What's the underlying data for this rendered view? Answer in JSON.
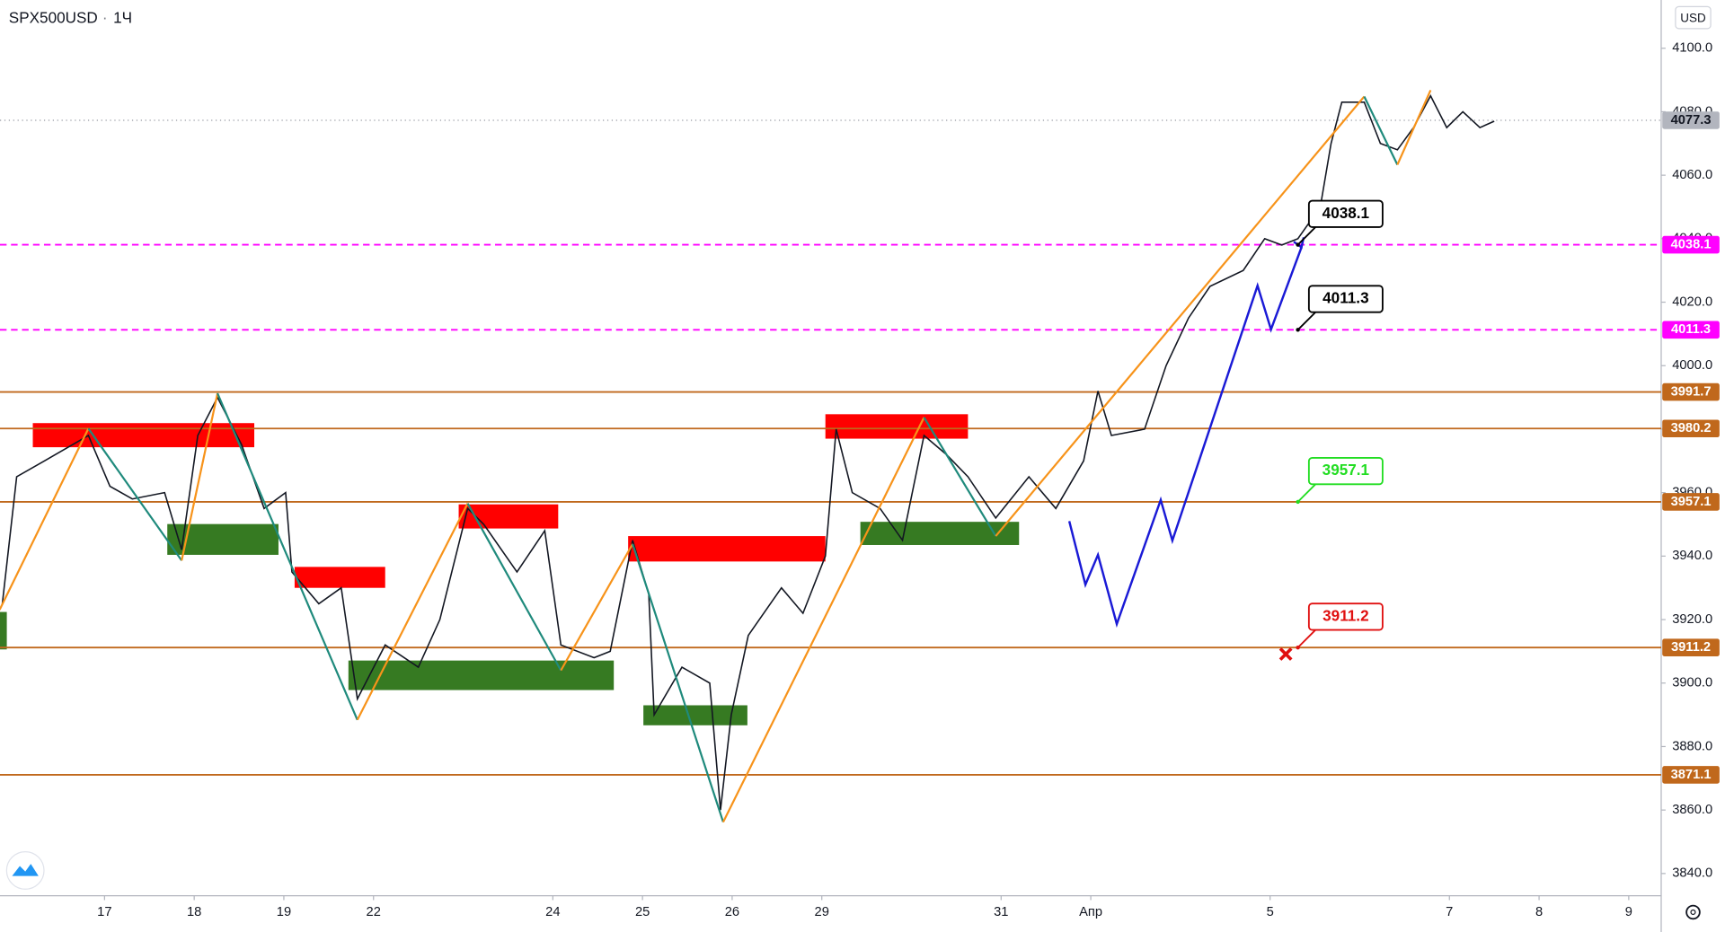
{
  "chart_data": {
    "type": "line",
    "title": "SPX500USD",
    "interval": "1Ч",
    "currency": "USD",
    "color": "#131722",
    "x": [
      -0.14,
      0.02,
      0.33,
      0.82,
      1.06,
      1.31,
      1.67,
      1.86,
      2.04,
      2.26,
      2.53,
      2.78,
      3.02,
      3.09,
      3.39,
      3.64,
      3.82,
      4.13,
      4.5,
      4.74,
      5.05,
      5.23,
      5.6,
      5.91,
      6.09,
      6.46,
      6.64,
      6.89,
      7.07,
      7.13,
      7.44,
      7.75,
      7.87,
      7.99,
      8.18,
      8.55,
      8.79,
      9.04,
      9.16,
      9.34,
      9.65,
      9.9,
      10.14,
      10.39,
      10.63,
      10.94,
      11.31,
      11.61,
      11.92,
      12.08,
      12.23,
      12.6,
      12.84,
      13.09,
      13.33,
      13.7,
      13.94,
      14.13,
      14.31,
      14.56,
      14.68,
      14.8,
      15.05,
      15.23,
      15.42,
      15.6,
      15.79,
      15.97,
      16.15,
      16.34,
      16.5
    ],
    "values": [
      3925,
      3965,
      3970,
      3978,
      3962,
      3958,
      3960,
      3942,
      3978,
      3990,
      3975,
      3955,
      3960,
      3935,
      3925,
      3930,
      3895,
      3912,
      3905,
      3920,
      3955,
      3950,
      3935,
      3948,
      3912,
      3908,
      3910,
      3945,
      3928,
      3890,
      3905,
      3900,
      3860,
      3890,
      3915,
      3930,
      3922,
      3940,
      3980,
      3960,
      3955,
      3945,
      3978,
      3972,
      3965,
      3952,
      3965,
      3955,
      3970,
      3992,
      3978,
      3980,
      4000,
      4015,
      4025,
      4030,
      4040,
      4038,
      4040,
      4050,
      4070,
      4083,
      4083,
      4070,
      4068,
      4075,
      4085,
      4075,
      4080,
      4075,
      4077
    ],
    "xlim": [
      -0.166,
      18.362
    ],
    "xticks": [
      {
        "value": 1,
        "label": "17"
      },
      {
        "value": 2,
        "label": "18"
      },
      {
        "value": 3,
        "label": "19"
      },
      {
        "value": 4,
        "label": "22"
      },
      {
        "value": 6,
        "label": "24"
      },
      {
        "value": 7,
        "label": "25"
      },
      {
        "value": 8,
        "label": "26"
      },
      {
        "value": 9,
        "label": "29"
      },
      {
        "value": 11,
        "label": "31"
      },
      {
        "value": 12,
        "label": "Апр"
      },
      {
        "value": 14,
        "label": "5"
      },
      {
        "value": 16,
        "label": "7"
      },
      {
        "value": 17,
        "label": "8"
      },
      {
        "value": 18,
        "label": "9"
      }
    ],
    "ylim": [
      3833,
      4115.2
    ],
    "yticks": [
      {
        "value": 3840,
        "label": "3840.0"
      },
      {
        "value": 3860,
        "label": "3860.0"
      },
      {
        "value": 3880,
        "label": "3880.0"
      },
      {
        "value": 3900,
        "label": "3900.0"
      },
      {
        "value": 3920,
        "label": "3920.0"
      },
      {
        "value": 3940,
        "label": "3940.0"
      },
      {
        "value": 3960,
        "label": "3960.0"
      },
      {
        "value": 3980,
        "label": "3980.0"
      },
      {
        "value": 4000,
        "label": "4000.0"
      },
      {
        "value": 4020,
        "label": "4020.0"
      },
      {
        "value": 4040,
        "label": "4040.0"
      },
      {
        "value": 4060,
        "label": "4060.0"
      },
      {
        "value": 4080,
        "label": "4080.0"
      },
      {
        "value": 4100,
        "label": "4100.0"
      }
    ],
    "current_price": {
      "value": 4077.3,
      "color": "#b2b5be"
    },
    "levels": [
      {
        "value": 3991.7,
        "color": "#c0681c"
      },
      {
        "value": 3980.2,
        "color": "#c0681c"
      },
      {
        "value": 3957.1,
        "color": "#c0681c"
      },
      {
        "value": 3911.2,
        "color": "#c0681c"
      },
      {
        "value": 3871.1,
        "color": "#c0681c"
      }
    ],
    "dashed_levels": [
      {
        "value": 4038.1,
        "color": "#ff00ff"
      },
      {
        "value": 4011.3,
        "color": "#ff00ff"
      }
    ],
    "zones": [
      {
        "x": [
          0.2,
          2.67
        ],
        "y": [
          3974.3,
          3981.9
        ],
        "color": "#ff0000"
      },
      {
        "x": [
          1.7,
          2.94
        ],
        "y": [
          3940.4,
          3950.1
        ],
        "color": "#367a22"
      },
      {
        "x": [
          3.12,
          4.13
        ],
        "y": [
          3930,
          3936.6
        ],
        "color": "#ff0000"
      },
      {
        "x": [
          3.72,
          6.68
        ],
        "y": [
          3897.8,
          3907.1
        ],
        "color": "#367a22"
      },
      {
        "x": [
          4.95,
          6.06
        ],
        "y": [
          3948.7,
          3956.3
        ],
        "color": "#ff0000"
      },
      {
        "x": [
          6.84,
          9.04
        ],
        "y": [
          3938.3,
          3946.3
        ],
        "color": "#ff0000"
      },
      {
        "x": [
          7.01,
          8.17
        ],
        "y": [
          3886.7,
          3893
        ],
        "color": "#367a22"
      },
      {
        "x": [
          9.04,
          10.63
        ],
        "y": [
          3977,
          3984.7
        ],
        "color": "#ff0000"
      },
      {
        "x": [
          9.43,
          11.2
        ],
        "y": [
          3943.5,
          3950.8
        ],
        "color": "#367a22"
      },
      {
        "x": [
          -0.17,
          -0.09
        ],
        "y": [
          3910.6,
          3922.4
        ],
        "color": "#367a22"
      }
    ],
    "zigzag": {
      "up_color": "#f7931a",
      "down_color": "#1f8a7c",
      "x": [
        -0.17,
        0.82,
        1.86,
        2.26,
        3.82,
        5.05,
        6.09,
        6.89,
        7.9,
        10.14,
        10.94,
        15.05,
        15.42,
        15.79
      ],
      "values": [
        3923.1,
        3980.2,
        3938.6,
        3991.3,
        3888.4,
        3956.6,
        3904,
        3943.8,
        3856.2,
        3983.7,
        3946.3,
        4084.8,
        4063.3,
        4086.8
      ]
    },
    "projection": {
      "color": "#1a1ad6",
      "x": [
        11.76,
        11.94,
        12.08,
        12.29,
        12.78,
        12.91,
        13.86,
        14.01,
        14.35
      ],
      "values": [
        3951,
        3931,
        3940.4,
        3918.6,
        3957.7,
        3944.9,
        4025.2,
        4011.4,
        4037.3
      ]
    },
    "callouts": [
      {
        "value": 4038.1,
        "color": "#000000",
        "x": 14.31
      },
      {
        "value": 4011.3,
        "color": "#000000",
        "x": 14.31
      },
      {
        "value": 3957.1,
        "color": "#22dd22",
        "x": 14.31
      },
      {
        "value": 3911.2,
        "color": "#e01010",
        "x": 14.31
      }
    ]
  }
}
